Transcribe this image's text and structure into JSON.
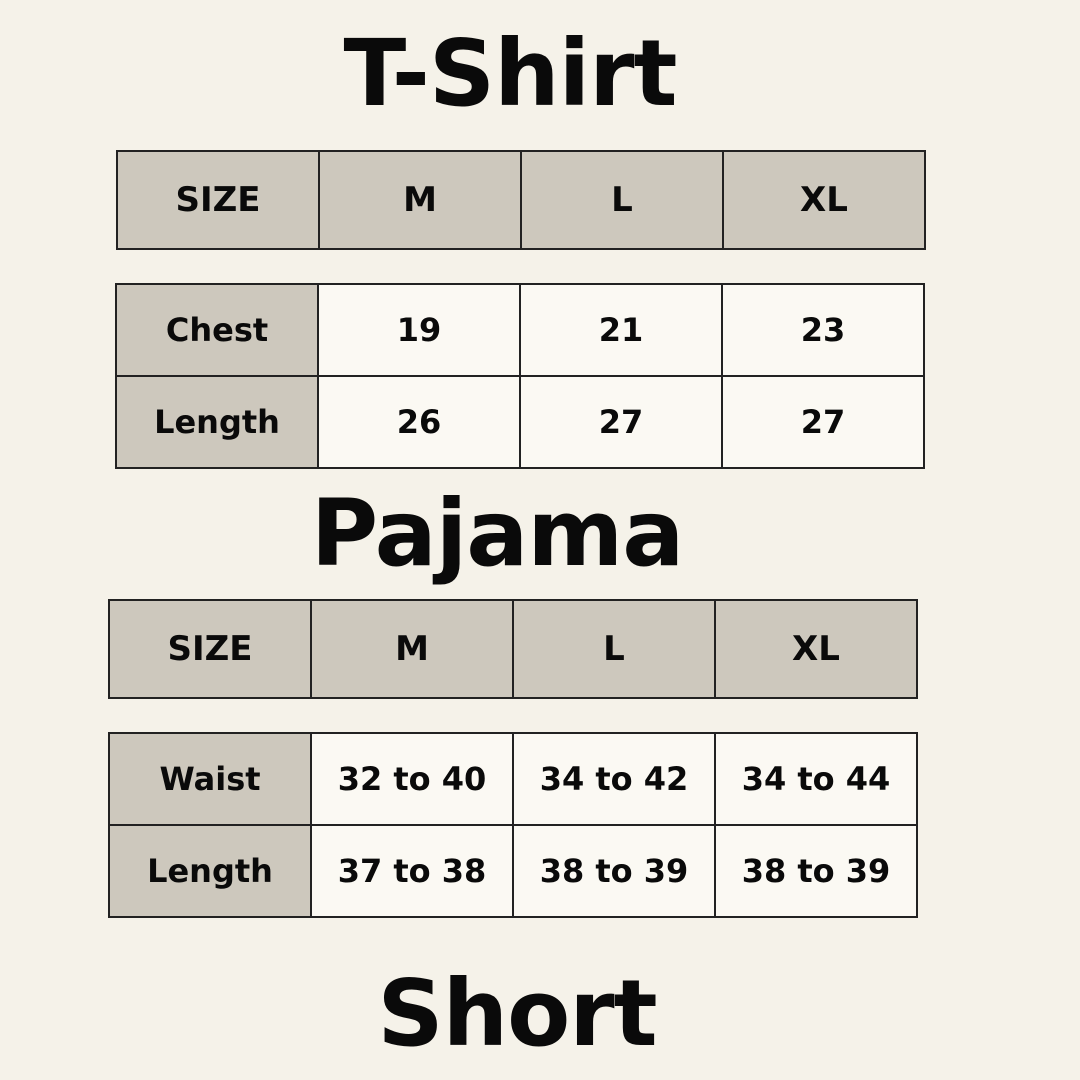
{
  "sections": [
    {
      "title": "T-Shirt",
      "header": [
        "SIZE",
        "M",
        "L",
        "XL"
      ],
      "rows": [
        {
          "label": "Chest",
          "values": [
            "19",
            "21",
            "23"
          ]
        },
        {
          "label": "Length",
          "values": [
            "26",
            "27",
            "27"
          ]
        }
      ]
    },
    {
      "title": "Pajama",
      "header": [
        "SIZE",
        "M",
        "L",
        "XL"
      ],
      "rows": [
        {
          "label": "Waist",
          "values": [
            "32 to 40",
            "34 to 42",
            "34 to 44"
          ]
        },
        {
          "label": "Length",
          "values": [
            "37 to 38",
            "38 to 39",
            "38 to 39"
          ]
        }
      ]
    },
    {
      "title": "Short"
    }
  ],
  "colors": {
    "background": "#f5f2e9",
    "header_fill": "#cdc8bd",
    "border": "#222222"
  }
}
